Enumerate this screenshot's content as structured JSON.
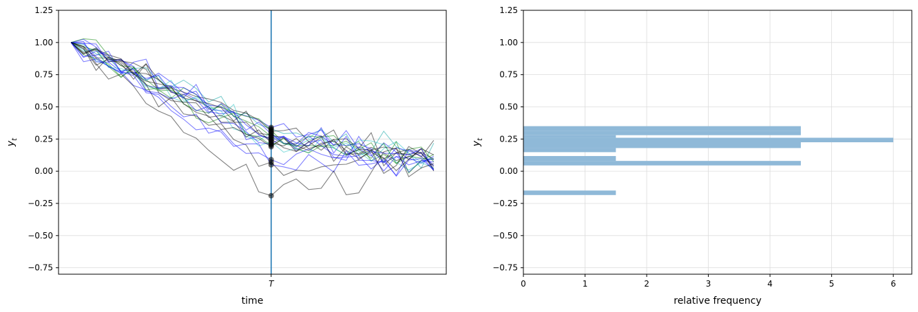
{
  "chart_data": [
    {
      "type": "line",
      "title": "",
      "xlabel": "time",
      "ylabel": "y_t",
      "ylim": [
        -0.8,
        1.25
      ],
      "yticks": [
        -0.75,
        -0.5,
        -0.25,
        0.0,
        0.25,
        0.5,
        0.75,
        1.0,
        1.25
      ],
      "ytick_labels": [
        "−0.75",
        "−0.50",
        "−0.25",
        "0.00",
        "0.25",
        "0.50",
        "0.75",
        "1.00",
        "1.25"
      ],
      "xlim": [
        -1,
        30
      ],
      "xtick_labels": [
        "T"
      ],
      "vline_x": 16,
      "grid": "horizontal",
      "n_paths": 20,
      "n_steps": 29,
      "series_colors": [
        "#0000ff",
        "#00a0a0",
        "#008000",
        "#000000",
        "#20c0c0",
        "#0000ff",
        "#000000",
        "#008000",
        "#0000ff",
        "#000000",
        "#0000ff",
        "#20c0c0",
        "#000000",
        "#0000ff",
        "#008000",
        "#000000",
        "#0000ff",
        "#000000",
        "#0000ff",
        "#000000"
      ],
      "T_values": [
        0.34,
        0.33,
        0.32,
        0.31,
        0.3,
        0.29,
        0.28,
        0.27,
        0.26,
        0.25,
        0.24,
        0.23,
        0.22,
        0.21,
        0.2,
        0.19,
        0.09,
        0.07,
        0.05,
        -0.19
      ],
      "vline_color": "#1f77b4"
    },
    {
      "type": "histogram",
      "title": "",
      "orientation": "horizontal",
      "xlabel": "relative frequency",
      "ylabel": "y_t",
      "xlim": [
        0,
        6.3
      ],
      "xticks": [
        0,
        1,
        2,
        3,
        4,
        5,
        6
      ],
      "xtick_labels": [
        "0",
        "1",
        "2",
        "3",
        "4",
        "5",
        "6"
      ],
      "ylim": [
        -0.8,
        1.25
      ],
      "yticks": [
        -0.75,
        -0.5,
        -0.25,
        0.0,
        0.25,
        0.5,
        0.75,
        1.0,
        1.25
      ],
      "ytick_labels": [
        "−0.75",
        "−0.50",
        "−0.25",
        "0.00",
        "0.25",
        "0.50",
        "0.75",
        "1.00",
        "1.25"
      ],
      "grid": "both",
      "color": "#8fb9d8",
      "bins": [
        {
          "y0": 0.315,
          "y1": 0.35,
          "freq": 4.5
        },
        {
          "y0": 0.28,
          "y1": 0.315,
          "freq": 4.5
        },
        {
          "y0": 0.26,
          "y1": 0.28,
          "freq": 1.5
        },
        {
          "y0": 0.225,
          "y1": 0.26,
          "freq": 6.0
        },
        {
          "y0": 0.18,
          "y1": 0.225,
          "freq": 4.5
        },
        {
          "y0": 0.148,
          "y1": 0.18,
          "freq": 1.5
        },
        {
          "y0": 0.08,
          "y1": 0.118,
          "freq": 1.5
        },
        {
          "y0": 0.045,
          "y1": 0.08,
          "freq": 4.5
        },
        {
          "y0": -0.185,
          "y1": -0.15,
          "freq": 1.5
        }
      ]
    }
  ]
}
